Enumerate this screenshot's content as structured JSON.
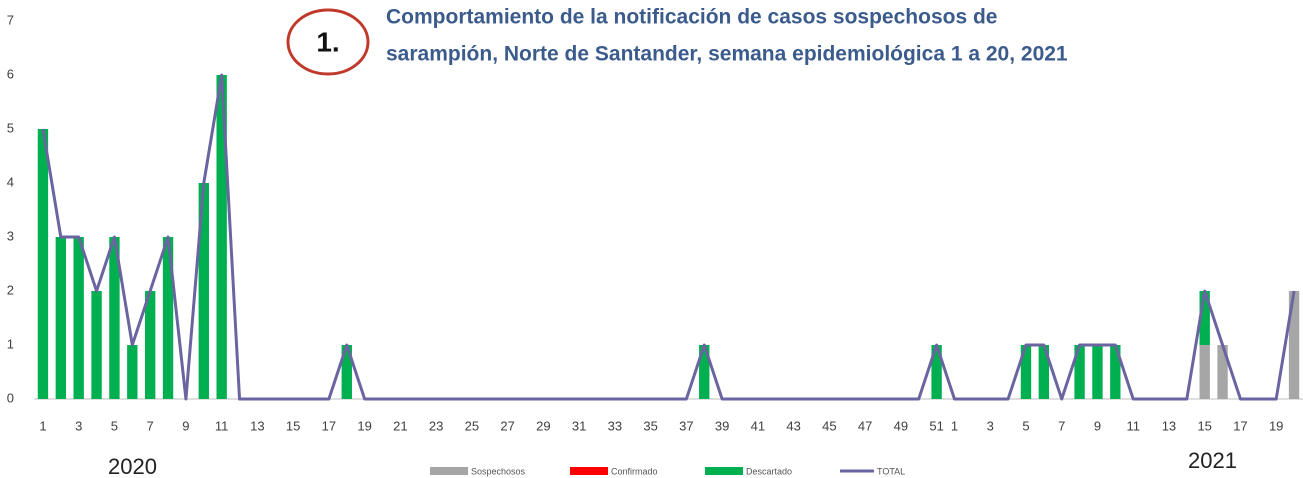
{
  "chart_data": {
    "type": "bar",
    "badge": "1.",
    "title": [
      "Comportamiento de la notificación de casos sospechosos de",
      "sarampión, Norte de Santander, semana epidemiológica 1 a 20, 2021"
    ],
    "annotations": [
      "2020",
      "2021"
    ],
    "stacked": true,
    "categories": [
      "1",
      null,
      "3",
      null,
      "5",
      null,
      "7",
      null,
      "9",
      null,
      "11",
      null,
      "13",
      null,
      "15",
      null,
      "17",
      null,
      "19",
      null,
      "21",
      null,
      "23",
      null,
      "25",
      null,
      "27",
      null,
      "29",
      null,
      "31",
      null,
      "33",
      null,
      "35",
      null,
      "37",
      null,
      "39",
      null,
      "41",
      null,
      "43",
      null,
      "45",
      null,
      "47",
      null,
      "49",
      null,
      "51",
      "1",
      null,
      "3",
      null,
      "5",
      null,
      "7",
      null,
      "9",
      null,
      "11",
      null,
      "13",
      null,
      "15",
      null,
      "17",
      null,
      "19",
      null
    ],
    "series": [
      {
        "name": "Sospechosos",
        "color": "#a6a6a6",
        "values": [
          0,
          0,
          0,
          0,
          0,
          0,
          0,
          0,
          0,
          0,
          0,
          0,
          0,
          0,
          0,
          0,
          0,
          0,
          0,
          0,
          0,
          0,
          0,
          0,
          0,
          0,
          0,
          0,
          0,
          0,
          0,
          0,
          0,
          0,
          0,
          0,
          0,
          0,
          0,
          0,
          0,
          0,
          0,
          0,
          0,
          0,
          0,
          0,
          0,
          0,
          0,
          0,
          0,
          0,
          0,
          0,
          0,
          0,
          0,
          0,
          0,
          0,
          0,
          0,
          0,
          1,
          1,
          0,
          0,
          0,
          2
        ]
      },
      {
        "name": "Confirmado",
        "color": "#ff0000",
        "values": [
          0,
          0,
          0,
          0,
          0,
          0,
          0,
          0,
          0,
          0,
          0,
          0,
          0,
          0,
          0,
          0,
          0,
          0,
          0,
          0,
          0,
          0,
          0,
          0,
          0,
          0,
          0,
          0,
          0,
          0,
          0,
          0,
          0,
          0,
          0,
          0,
          0,
          0,
          0,
          0,
          0,
          0,
          0,
          0,
          0,
          0,
          0,
          0,
          0,
          0,
          0,
          0,
          0,
          0,
          0,
          0,
          0,
          0,
          0,
          0,
          0,
          0,
          0,
          0,
          0,
          0,
          0,
          0,
          0,
          0,
          0
        ]
      },
      {
        "name": "Descartado",
        "color": "#00b050",
        "values": [
          5,
          3,
          3,
          2,
          3,
          1,
          2,
          3,
          0,
          4,
          6,
          0,
          0,
          0,
          0,
          0,
          0,
          1,
          0,
          0,
          0,
          0,
          0,
          0,
          0,
          0,
          0,
          0,
          0,
          0,
          0,
          0,
          0,
          0,
          0,
          0,
          0,
          1,
          0,
          0,
          0,
          0,
          0,
          0,
          0,
          0,
          0,
          0,
          0,
          0,
          1,
          0,
          0,
          0,
          0,
          1,
          1,
          0,
          1,
          1,
          1,
          0,
          0,
          0,
          0,
          1,
          0,
          0,
          0,
          0,
          0
        ]
      },
      {
        "name": "TOTAL",
        "color": "#6a64a0",
        "type": "line",
        "values": [
          5,
          3,
          3,
          2,
          3,
          1,
          2,
          3,
          0,
          4,
          6,
          0,
          0,
          0,
          0,
          0,
          0,
          1,
          0,
          0,
          0,
          0,
          0,
          0,
          0,
          0,
          0,
          0,
          0,
          0,
          0,
          0,
          0,
          0,
          0,
          0,
          0,
          1,
          0,
          0,
          0,
          0,
          0,
          0,
          0,
          0,
          0,
          0,
          0,
          0,
          1,
          0,
          0,
          0,
          0,
          1,
          1,
          0,
          1,
          1,
          1,
          0,
          0,
          0,
          0,
          2,
          1,
          0,
          0,
          0,
          2
        ]
      }
    ],
    "ylim": [
      0,
      7
    ],
    "yticks": [
      0,
      1,
      2,
      3,
      4,
      5,
      6,
      7
    ],
    "grid": false,
    "legend": "bottom"
  }
}
